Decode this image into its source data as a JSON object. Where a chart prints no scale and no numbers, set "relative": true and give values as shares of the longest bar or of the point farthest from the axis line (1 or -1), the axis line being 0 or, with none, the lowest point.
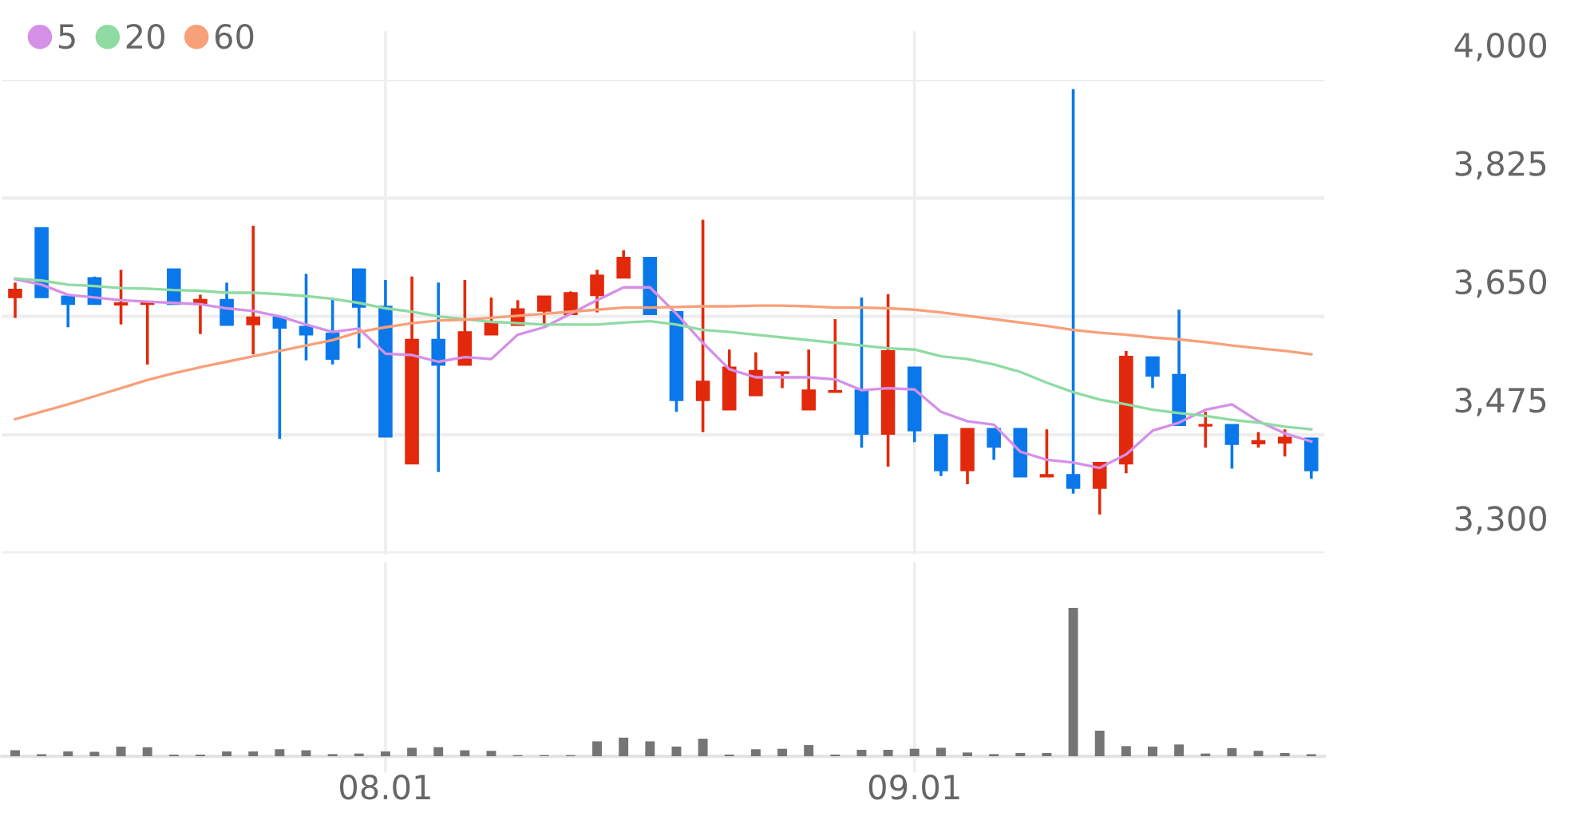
{
  "chart_data": [
    {
      "type": "candlestick",
      "categories": [
        null,
        null,
        null,
        null,
        null,
        null,
        null,
        null,
        null,
        null,
        null,
        null,
        null,
        null,
        "08.01",
        null,
        null,
        null,
        null,
        null,
        null,
        null,
        null,
        null,
        null,
        null,
        null,
        null,
        null,
        null,
        null,
        null,
        null,
        null,
        "09.01",
        null,
        null,
        null,
        null,
        null,
        null,
        null,
        null,
        null,
        null,
        null,
        null,
        null,
        null,
        null
      ],
      "ohlc": [
        [
          3678,
          3700,
          3648,
          3690
        ],
        [
          3781,
          3781,
          3678,
          3678
        ],
        [
          3680,
          3680,
          3634,
          3668
        ],
        [
          3707,
          3709,
          3668,
          3668
        ],
        [
          3667,
          3719,
          3638,
          3670
        ],
        [
          3668,
          3670,
          3579,
          3670
        ],
        [
          3720,
          3720,
          3668,
          3668
        ],
        [
          3668,
          3682,
          3624,
          3675
        ],
        [
          3675,
          3700,
          3637,
          3637
        ],
        [
          3638,
          3784,
          3594,
          3649
        ],
        [
          3649,
          3649,
          3469,
          3633
        ],
        [
          3635,
          3713,
          3585,
          3623
        ],
        [
          3625,
          3678,
          3579,
          3587
        ],
        [
          3720,
          3720,
          3603,
          3664
        ],
        [
          3665,
          3704,
          3472,
          3472
        ],
        [
          3432,
          3709,
          3432,
          3616
        ],
        [
          3616,
          3700,
          3420,
          3578
        ],
        [
          3578,
          3704,
          3578,
          3627
        ],
        [
          3623,
          3678,
          3623,
          3640
        ],
        [
          3637,
          3674,
          3637,
          3661
        ],
        [
          3658,
          3680,
          3637,
          3680
        ],
        [
          3653,
          3687,
          3653,
          3685
        ],
        [
          3681,
          3719,
          3656,
          3711
        ],
        [
          3707,
          3748,
          3707,
          3737
        ],
        [
          3737,
          3737,
          3653,
          3653
        ],
        [
          3657,
          3657,
          3509,
          3526
        ],
        [
          3526,
          3793,
          3479,
          3554
        ],
        [
          3512,
          3601,
          3512,
          3575
        ],
        [
          3533,
          3597,
          3533,
          3570
        ],
        [
          3566,
          3568,
          3544,
          3568
        ],
        [
          3512,
          3601,
          3512,
          3541
        ],
        [
          3538,
          3646,
          3538,
          3540
        ],
        [
          3541,
          3678,
          3456,
          3476
        ],
        [
          3476,
          3683,
          3428,
          3599
        ],
        [
          3575,
          3575,
          3464,
          3481
        ],
        [
          3475,
          3475,
          3414,
          3422
        ],
        [
          3422,
          3484,
          3402,
          3484
        ],
        [
          3484,
          3484,
          3438,
          3457
        ],
        [
          3484,
          3484,
          3413,
          3413
        ],
        [
          3413,
          3483,
          3413,
          3416
        ],
        [
          3416,
          3986,
          3388,
          3396
        ],
        [
          3396,
          3434,
          3357,
          3434
        ],
        [
          3432,
          3599,
          3418,
          3591
        ],
        [
          3590,
          3590,
          3544,
          3562
        ],
        [
          3564,
          3660,
          3489,
          3489
        ],
        [
          3488,
          3509,
          3456,
          3490
        ],
        [
          3490,
          3490,
          3425,
          3461
        ],
        [
          3462,
          3479,
          3456,
          3466
        ],
        [
          3463,
          3483,
          3443,
          3471
        ],
        [
          3470,
          3470,
          3410,
          3422
        ]
      ],
      "colors": [
        "#e3290b",
        "#0a78ea",
        "#0a78ea",
        "#0a78ea",
        "#e3290b",
        "#e3290b",
        "#0a78ea",
        "#e3290b",
        "#0a78ea",
        "#e3290b",
        "#0a78ea",
        "#0a78ea",
        "#0a78ea",
        "#0a78ea",
        "#0a78ea",
        "#e3290b",
        "#0a78ea",
        "#e3290b",
        "#e3290b",
        "#e3290b",
        "#e3290b",
        "#e3290b",
        "#e3290b",
        "#e3290b",
        "#0a78ea",
        "#0a78ea",
        "#e3290b",
        "#e3290b",
        "#e3290b",
        "#e3290b",
        "#e3290b",
        "#e3290b",
        "#0a78ea",
        "#e3290b",
        "#0a78ea",
        "#0a78ea",
        "#e3290b",
        "#0a78ea",
        "#0a78ea",
        "#e3290b",
        "#0a78ea",
        "#e3290b",
        "#e3290b",
        "#0a78ea",
        "#0a78ea",
        "#e3290b",
        "#0a78ea",
        "#e3290b",
        "#e3290b",
        "#0a78ea"
      ],
      "series": [
        {
          "name": "5",
          "type": "line",
          "color": "#d590e8",
          "values": [
            3705,
            3697,
            3682,
            3678,
            3674,
            3672,
            3670,
            3668,
            3662,
            3658,
            3650,
            3638,
            3627,
            3632,
            3595,
            3593,
            3583,
            3590,
            3587,
            3623,
            3634,
            3654,
            3674,
            3693,
            3693,
            3654,
            3611,
            3572,
            3560,
            3560,
            3560,
            3557,
            3541,
            3544,
            3542,
            3509,
            3495,
            3490,
            3450,
            3438,
            3434,
            3426,
            3446,
            3481,
            3493,
            3512,
            3520,
            3495,
            3477,
            3465
          ]
        },
        {
          "name": "20",
          "type": "line",
          "color": "#8fdba3",
          "values": [
            3706,
            3703,
            3697,
            3695,
            3692,
            3691,
            3689,
            3688,
            3685,
            3685,
            3683,
            3680,
            3676,
            3670,
            3662,
            3657,
            3650,
            3646,
            3642,
            3640,
            3638,
            3638,
            3638,
            3641,
            3643,
            3638,
            3630,
            3627,
            3623,
            3619,
            3615,
            3611,
            3607,
            3603,
            3601,
            3591,
            3587,
            3579,
            3568,
            3552,
            3538,
            3527,
            3520,
            3512,
            3507,
            3503,
            3497,
            3493,
            3487,
            3483
          ]
        },
        {
          "name": "60",
          "type": "line",
          "color": "#f7a07a",
          "values": [
            3498,
            3509,
            3520,
            3532,
            3544,
            3556,
            3566,
            3575,
            3583,
            3591,
            3599,
            3607,
            3615,
            3627,
            3634,
            3640,
            3644,
            3645,
            3648,
            3651,
            3654,
            3657,
            3660,
            3663,
            3663,
            3664,
            3665,
            3665,
            3666,
            3666,
            3665,
            3663,
            3663,
            3662,
            3660,
            3656,
            3651,
            3646,
            3641,
            3636,
            3630,
            3626,
            3623,
            3619,
            3616,
            3612,
            3607,
            3603,
            3599,
            3594
          ]
        }
      ],
      "ylim": [
        3300,
        4000
      ],
      "yticks": [
        {
          "value": 3300,
          "label": "3,300"
        },
        {
          "value": 3475,
          "label": "3,475"
        },
        {
          "value": 3650,
          "label": "3,650"
        },
        {
          "value": 3825,
          "label": "3,825"
        },
        {
          "value": 4000,
          "label": "4,000"
        }
      ],
      "grid": true,
      "legend": "top left",
      "tick_labels": "y"
    },
    {
      "type": "bar",
      "categories": [
        null,
        null,
        null,
        null,
        null,
        null,
        null,
        null,
        null,
        null,
        null,
        null,
        null,
        null,
        "08.01",
        null,
        null,
        null,
        null,
        null,
        null,
        null,
        null,
        null,
        null,
        null,
        null,
        null,
        null,
        null,
        null,
        null,
        null,
        null,
        "09.01",
        null,
        null,
        null,
        null,
        null,
        null,
        null,
        null,
        null,
        null,
        null,
        null,
        null,
        null,
        null
      ],
      "values": [
        0.04,
        0.014,
        0.032,
        0.029,
        0.065,
        0.061,
        0.011,
        0.011,
        0.032,
        0.032,
        0.047,
        0.04,
        0.014,
        0.018,
        0.032,
        0.057,
        0.061,
        0.04,
        0.036,
        0.007,
        0.007,
        0.007,
        0.1,
        0.125,
        0.1,
        0.065,
        0.118,
        0.011,
        0.047,
        0.05,
        0.075,
        0.011,
        0.043,
        0.043,
        0.05,
        0.057,
        0.025,
        0.014,
        0.022,
        0.022,
        1,
        0.172,
        0.068,
        0.065,
        0.079,
        0.018,
        0.054,
        0.036,
        0.022,
        0.014
      ],
      "color": "#757575",
      "relative": true,
      "grid": "x",
      "tick_labels": "x"
    }
  ]
}
